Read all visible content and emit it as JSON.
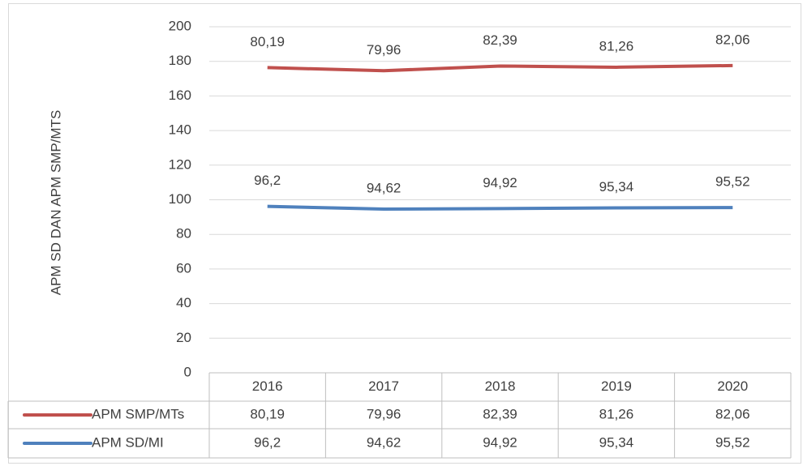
{
  "chart_data": {
    "type": "line",
    "stacked": true,
    "y_label": "APM SD DAN APM SMP/MTS",
    "categories": [
      "2016",
      "2017",
      "2018",
      "2019",
      "2020"
    ],
    "series": [
      {
        "name": "APM SMP/MTs",
        "color": "#c0504d",
        "values": [
          80.19,
          79.96,
          82.39,
          81.26,
          82.06
        ],
        "value_labels": [
          "80,19",
          "79,96",
          "82,39",
          "81,26",
          "82,06"
        ]
      },
      {
        "name": "APM SD/MI",
        "color": "#4f81bd",
        "values": [
          96.2,
          94.62,
          94.92,
          95.34,
          95.52
        ],
        "value_labels": [
          "96,2",
          "94,62",
          "94,92",
          "95,34",
          "95,52"
        ]
      }
    ],
    "ylim": [
      0,
      200
    ],
    "yticks": [
      0,
      20,
      40,
      60,
      80,
      100,
      120,
      140,
      160,
      180,
      200
    ],
    "grid": true,
    "data_table": true
  }
}
